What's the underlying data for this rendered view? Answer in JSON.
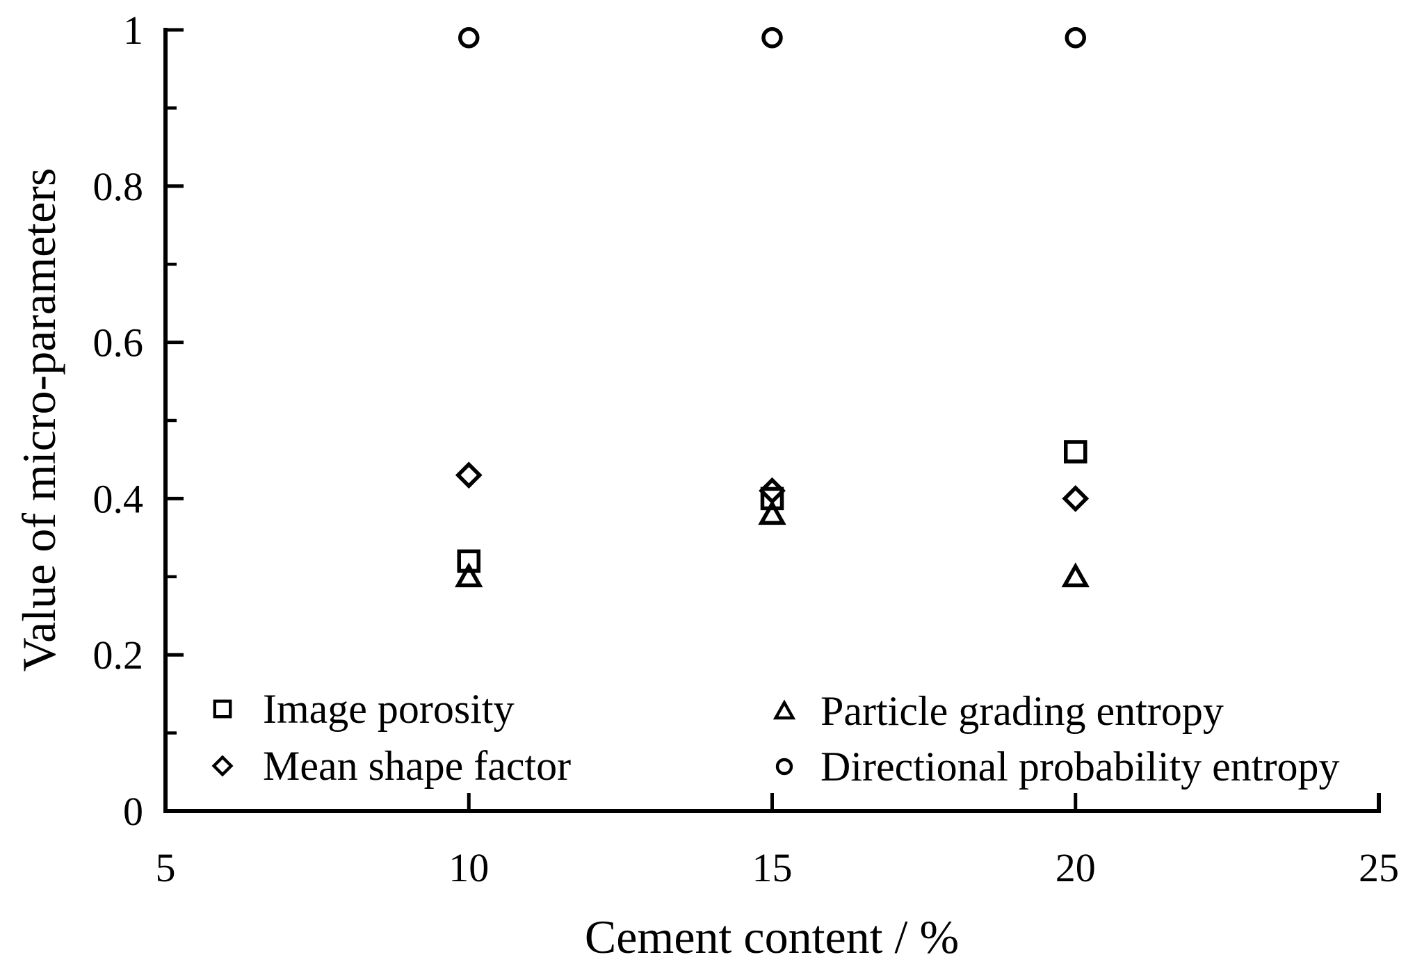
{
  "chart_data": {
    "type": "scatter",
    "title": "",
    "xlabel": "Cement content / %",
    "ylabel": "Value of micro-parameters",
    "xlim": [
      5,
      25
    ],
    "ylim": [
      0,
      1
    ],
    "x_ticks": [
      5,
      10,
      15,
      20,
      25
    ],
    "x_tick_labels": [
      "5",
      "10",
      "15",
      "20",
      "25"
    ],
    "y_ticks": [
      0,
      0.2,
      0.4,
      0.6,
      0.8,
      1
    ],
    "y_tick_labels": [
      "0",
      "0.2",
      "0.4",
      "0.6",
      "0.8",
      "1"
    ],
    "y_minor_ticks": [
      0.1,
      0.3,
      0.5,
      0.7,
      0.9
    ],
    "grid": false,
    "legend_position": "inside-lower-left, two columns, no frame",
    "marker_color": "#000000",
    "background_color": "#ffffff",
    "x": [
      10,
      15,
      20
    ],
    "series": [
      {
        "name": "Image porosity",
        "marker": "square",
        "values": [
          0.32,
          0.4,
          0.46
        ]
      },
      {
        "name": "Mean shape factor",
        "marker": "diamond",
        "values": [
          0.43,
          0.41,
          0.4
        ]
      },
      {
        "name": "Particle grading entropy",
        "marker": "triangle",
        "values": [
          0.3,
          0.38,
          0.3
        ]
      },
      {
        "name": "Directional probability entropy",
        "marker": "circle",
        "values": [
          0.99,
          0.99,
          0.99
        ]
      }
    ]
  }
}
